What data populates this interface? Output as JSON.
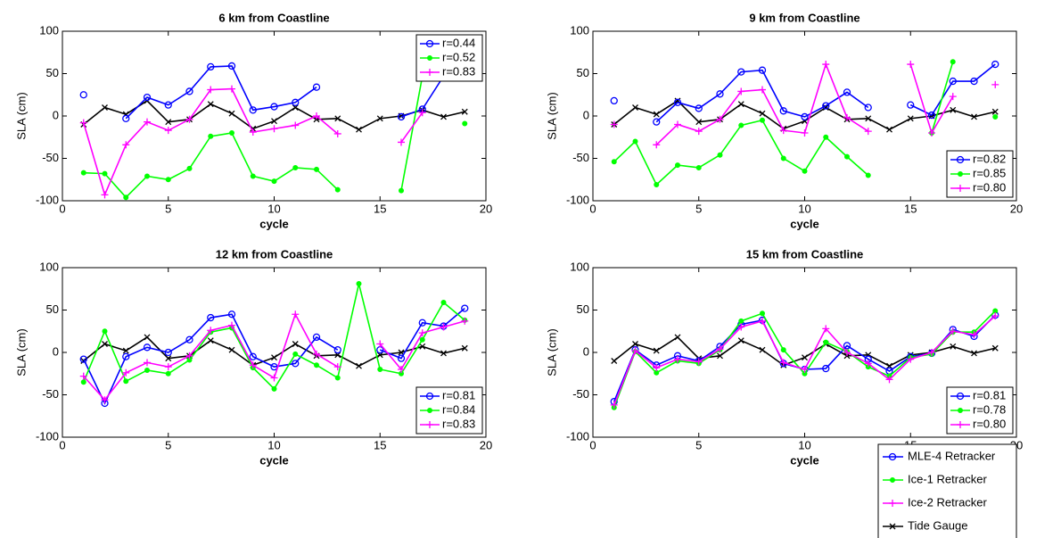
{
  "chart_data": [
    {
      "type": "line",
      "title": "6 km from Coastline",
      "x_label": "cycle",
      "y_label": "SLA (cm)",
      "x": [
        1,
        2,
        3,
        4,
        5,
        6,
        7,
        8,
        9,
        10,
        11,
        12,
        13,
        14,
        15,
        16,
        17,
        18,
        19
      ],
      "xlim": [
        0,
        20
      ],
      "xticks": [
        0,
        5,
        10,
        15,
        20
      ],
      "ylim": [
        -100,
        100
      ],
      "yticks": [
        -100,
        -50,
        0,
        50,
        100
      ],
      "legend_loc": "upper right",
      "series": [
        {
          "name": "r=0.44",
          "color": "#0000ff",
          "marker": "circle",
          "values": [
            25,
            null,
            -3,
            22,
            13,
            29,
            58,
            59,
            7,
            11,
            16,
            34,
            null,
            null,
            null,
            -1,
            8,
            47,
            73
          ]
        },
        {
          "name": "r=0.52",
          "color": "#00ff00",
          "marker": "dot",
          "values": [
            -67,
            -68,
            -96,
            -71,
            -75,
            -62,
            -24,
            -20,
            -71,
            -77,
            -61,
            -63,
            -87,
            null,
            null,
            -88,
            47,
            null,
            -9
          ]
        },
        {
          "name": "r=0.83",
          "color": "#ff00ff",
          "marker": "plus",
          "values": [
            -8,
            -93,
            -34,
            -7,
            -17,
            -4,
            31,
            32,
            -19,
            -15,
            -11,
            0,
            -21,
            null,
            null,
            -31,
            4,
            null,
            45
          ]
        },
        {
          "color": "#000000",
          "marker": "cross",
          "values": [
            -10,
            10,
            2,
            18,
            -7,
            -4,
            14,
            3,
            -15,
            -6,
            10,
            -4,
            -3,
            -16,
            -3,
            0,
            7,
            -1,
            5
          ]
        }
      ]
    },
    {
      "type": "line",
      "title": "9 km from Coastline",
      "x_label": "cycle",
      "y_label": "SLA (cm)",
      "x": [
        1,
        2,
        3,
        4,
        5,
        6,
        7,
        8,
        9,
        10,
        11,
        12,
        13,
        14,
        15,
        16,
        17,
        18,
        19
      ],
      "xlim": [
        0,
        20
      ],
      "xticks": [
        0,
        5,
        10,
        15,
        20
      ],
      "ylim": [
        -100,
        100
      ],
      "yticks": [
        -100,
        -50,
        0,
        50,
        100
      ],
      "legend_loc": "lower right",
      "series": [
        {
          "name": "r=0.82",
          "color": "#0000ff",
          "marker": "circle",
          "values": [
            18,
            null,
            -7,
            16,
            9,
            26,
            52,
            54,
            6,
            -1,
            12,
            28,
            10,
            null,
            13,
            1,
            41,
            41,
            61
          ]
        },
        {
          "name": "r=0.85",
          "color": "#00ff00",
          "marker": "dot",
          "values": [
            -54,
            -30,
            -81,
            -58,
            -61,
            -46,
            -11,
            -5,
            -50,
            -65,
            -25,
            -48,
            -70,
            null,
            null,
            -20,
            64,
            null,
            -1
          ]
        },
        {
          "name": "r=0.80",
          "color": "#ff00ff",
          "marker": "plus",
          "values": [
            -10,
            null,
            -34,
            -10,
            -18,
            -4,
            29,
            31,
            -17,
            -20,
            61,
            -2,
            -18,
            null,
            61,
            -20,
            23,
            null,
            37
          ]
        },
        {
          "color": "#000000",
          "marker": "cross",
          "values": [
            -10,
            10,
            2,
            18,
            -7,
            -4,
            14,
            3,
            -15,
            -6,
            10,
            -4,
            -3,
            -16,
            -3,
            0,
            7,
            -1,
            5
          ]
        }
      ]
    },
    {
      "type": "line",
      "title": "12 km from Coastline",
      "x_label": "cycle",
      "y_label": "SLA (cm)",
      "x": [
        1,
        2,
        3,
        4,
        5,
        6,
        7,
        8,
        9,
        10,
        11,
        12,
        13,
        14,
        15,
        16,
        17,
        18,
        19
      ],
      "xlim": [
        0,
        20
      ],
      "xticks": [
        0,
        5,
        10,
        15,
        20
      ],
      "ylim": [
        -100,
        100
      ],
      "yticks": [
        -100,
        -50,
        0,
        50,
        100
      ],
      "legend_loc": "lower right",
      "series": [
        {
          "name": "r=0.81",
          "color": "#0000ff",
          "marker": "circle",
          "values": [
            -8,
            -60,
            -5,
            6,
            0,
            15,
            41,
            45,
            -5,
            -17,
            -13,
            18,
            3,
            null,
            3,
            -7,
            35,
            31,
            52
          ]
        },
        {
          "name": "r=0.84",
          "color": "#00ff00",
          "marker": "dot",
          "values": [
            -35,
            25,
            -34,
            -21,
            -25,
            -9,
            24,
            29,
            -18,
            -43,
            -2,
            -15,
            -30,
            81,
            -20,
            -25,
            15,
            59,
            38
          ]
        },
        {
          "name": "r=0.83",
          "color": "#ff00ff",
          "marker": "plus",
          "values": [
            -28,
            -56,
            -24,
            -12,
            -17,
            -4,
            26,
            32,
            -15,
            -30,
            45,
            -2,
            -17,
            null,
            10,
            -20,
            23,
            30,
            37
          ]
        },
        {
          "color": "#000000",
          "marker": "cross",
          "values": [
            -10,
            10,
            2,
            18,
            -7,
            -4,
            14,
            3,
            -15,
            -6,
            10,
            -4,
            -3,
            -16,
            -3,
            0,
            7,
            -1,
            5
          ]
        }
      ]
    },
    {
      "type": "line",
      "title": "15 km from Coastline",
      "x_label": "cycle",
      "y_label": "SLA (cm)",
      "x": [
        1,
        2,
        3,
        4,
        5,
        6,
        7,
        8,
        9,
        10,
        11,
        12,
        13,
        14,
        15,
        16,
        17,
        18,
        19
      ],
      "xlim": [
        0,
        20
      ],
      "xticks": [
        0,
        5,
        10,
        15,
        20
      ],
      "ylim": [
        -100,
        100
      ],
      "yticks": [
        -100,
        -50,
        0,
        50,
        100
      ],
      "legend_loc": "lower right",
      "series": [
        {
          "name": "r=0.81",
          "color": "#0000ff",
          "marker": "circle",
          "values": [
            -58,
            3,
            -15,
            -4,
            -10,
            7,
            33,
            38,
            -13,
            -20,
            -19,
            8,
            -8,
            -22,
            -5,
            -1,
            27,
            19,
            44
          ]
        },
        {
          "name": "r=0.78",
          "color": "#00ff00",
          "marker": "dot",
          "values": [
            -65,
            1,
            -24,
            -10,
            -13,
            3,
            37,
            46,
            3,
            -25,
            12,
            1,
            -17,
            -28,
            -6,
            -2,
            24,
            24,
            49
          ]
        },
        {
          "name": "r=0.80",
          "color": "#ff00ff",
          "marker": "plus",
          "values": [
            -62,
            2,
            -18,
            -8,
            -11,
            4,
            30,
            37,
            -12,
            -20,
            28,
            0,
            -13,
            -32,
            -8,
            0,
            25,
            21,
            43
          ]
        },
        {
          "color": "#000000",
          "marker": "cross",
          "values": [
            -10,
            10,
            2,
            18,
            -7,
            -4,
            14,
            3,
            -15,
            -6,
            10,
            -4,
            -3,
            -16,
            -3,
            0,
            7,
            -1,
            5
          ]
        }
      ]
    }
  ],
  "legend": {
    "entries": [
      "MLE-4 Retracker",
      "Ice-1 Retracker",
      "Ice-2 Retracker",
      "Tide Gauge"
    ]
  }
}
